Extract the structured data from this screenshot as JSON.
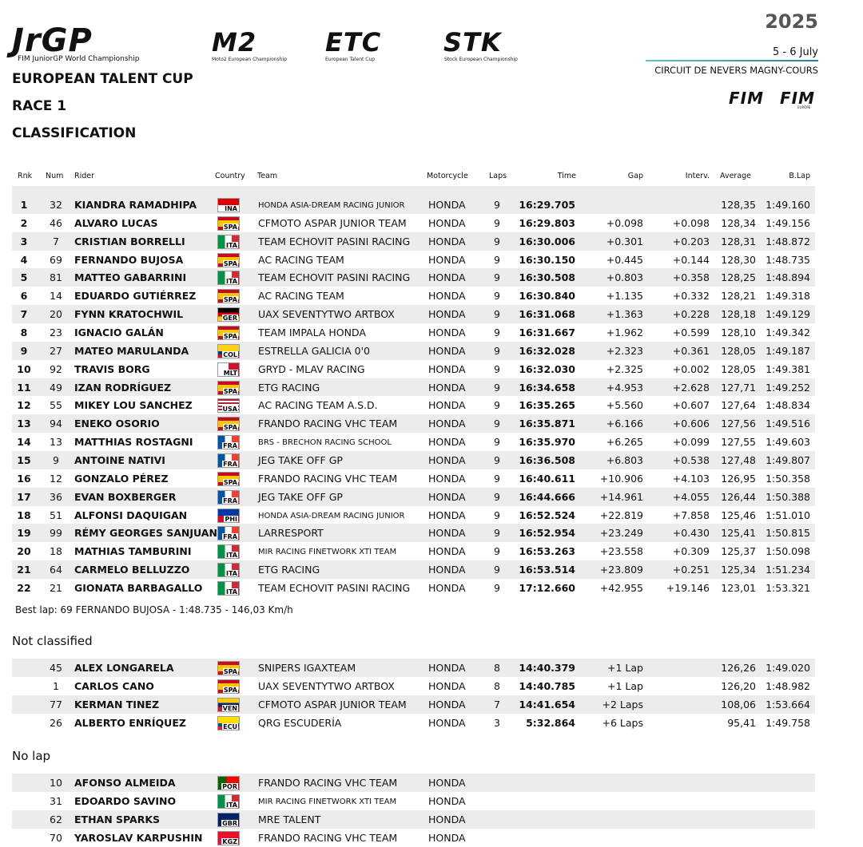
{
  "header": {
    "logos": {
      "jrgp": "JrGP",
      "jrgp_sub": "FIM JuniorGP World Championship",
      "m2": "M2",
      "m2_sub": "Moto2 European Championship",
      "etc": "ETC",
      "etc_sub": "European Talent Cup",
      "stk": "STK",
      "stk_sub": "Stock European Championship",
      "fim": "FIM",
      "fim_europe": "FIM",
      "fim_europe_sub": "EUROPE"
    },
    "year": "2025",
    "dates": "5 - 6 July",
    "circuit": "CIRCUIT DE NEVERS MAGNY-COURS",
    "event": "EUROPEAN TALENT CUP",
    "race": "RACE 1",
    "section": "CLASSIFICATION"
  },
  "table": {
    "columns": {
      "rank": "Rnk",
      "num": "Num",
      "rider": "Rider",
      "country": "Country",
      "team": "Team",
      "motorcycle": "Motorcycle",
      "laps": "Laps",
      "time": "Time",
      "gap": "Gap",
      "interval": "Interv.",
      "average": "Average",
      "best_lap": "B.Lap"
    },
    "classified": [
      {
        "rank": "1",
        "num": "32",
        "rider": "KIANDRA RAMADHIPA",
        "country": "INA",
        "team": "HONDA ASIA-DREAM RACING JUNIOR",
        "motorcycle": "HONDA",
        "laps": "9",
        "time": "16:29.705",
        "average": "128,35",
        "best_lap": "1:49.160"
      },
      {
        "rank": "2",
        "num": "46",
        "rider": "ALVARO LUCAS",
        "country": "SPA",
        "team": "CFMOTO ASPAR JUNIOR TEAM",
        "motorcycle": "HONDA",
        "laps": "9",
        "time": "16:29.803",
        "gap": "+0.098",
        "interval": "+0.098",
        "average": "128,34",
        "best_lap": "1:49.156"
      },
      {
        "rank": "3",
        "num": "7",
        "rider": "CRISTIAN BORRELLI",
        "country": "ITA",
        "team": "TEAM ECHOVIT PASINI RACING",
        "motorcycle": "HONDA",
        "laps": "9",
        "time": "16:30.006",
        "gap": "+0.301",
        "interval": "+0.203",
        "average": "128,31",
        "best_lap": "1:48.872"
      },
      {
        "rank": "4",
        "num": "69",
        "rider": "FERNANDO BUJOSA",
        "country": "SPA",
        "team": "AC RACING TEAM",
        "motorcycle": "HONDA",
        "laps": "9",
        "time": "16:30.150",
        "gap": "+0.445",
        "interval": "+0.144",
        "average": "128,30",
        "best_lap": "1:48.735"
      },
      {
        "rank": "5",
        "num": "81",
        "rider": "MATTEO GABARRINI",
        "country": "ITA",
        "team": "TEAM ECHOVIT PASINI RACING",
        "motorcycle": "HONDA",
        "laps": "9",
        "time": "16:30.508",
        "gap": "+0.803",
        "interval": "+0.358",
        "average": "128,25",
        "best_lap": "1:48.894"
      },
      {
        "rank": "6",
        "num": "14",
        "rider": "EDUARDO GUTIÉRREZ",
        "country": "SPA",
        "team": "AC RACING TEAM",
        "motorcycle": "HONDA",
        "laps": "9",
        "time": "16:30.840",
        "gap": "+1.135",
        "interval": "+0.332",
        "average": "128,21",
        "best_lap": "1:49.318"
      },
      {
        "rank": "7",
        "num": "20",
        "rider": "FYNN KRATOCHWIL",
        "country": "GER",
        "team": "UAX SEVENTYTWO ARTBOX",
        "motorcycle": "HONDA",
        "laps": "9",
        "time": "16:31.068",
        "gap": "+1.363",
        "interval": "+0.228",
        "average": "128,18",
        "best_lap": "1:49.129"
      },
      {
        "rank": "8",
        "num": "23",
        "rider": "IGNACIO GALÁN",
        "country": "SPA",
        "team": "TEAM IMPALA HONDA",
        "motorcycle": "HONDA",
        "laps": "9",
        "time": "16:31.667",
        "gap": "+1.962",
        "interval": "+0.599",
        "average": "128,10",
        "best_lap": "1:49.342"
      },
      {
        "rank": "9",
        "num": "27",
        "rider": "MATEO MARULANDA",
        "country": "COL",
        "team": "ESTRELLA GALICIA 0'0",
        "motorcycle": "HONDA",
        "laps": "9",
        "time": "16:32.028",
        "gap": "+2.323",
        "interval": "+0.361",
        "average": "128,05",
        "best_lap": "1:49.187"
      },
      {
        "rank": "10",
        "num": "92",
        "rider": "TRAVIS BORG",
        "country": "MLT",
        "team": "GRYD - MLAV RACING",
        "motorcycle": "HONDA",
        "laps": "9",
        "time": "16:32.030",
        "gap": "+2.325",
        "interval": "+0.002",
        "average": "128,05",
        "best_lap": "1:49.381"
      },
      {
        "rank": "11",
        "num": "49",
        "rider": "IZAN RODRÍGUEZ",
        "country": "SPA",
        "team": "ETG RACING",
        "motorcycle": "HONDA",
        "laps": "9",
        "time": "16:34.658",
        "gap": "+4.953",
        "interval": "+2.628",
        "average": "127,71",
        "best_lap": "1:49.252"
      },
      {
        "rank": "12",
        "num": "55",
        "rider": "MIKEY LOU SANCHEZ",
        "country": "USA",
        "team": "AC RACING TEAM A.S.D.",
        "motorcycle": "HONDA",
        "laps": "9",
        "time": "16:35.265",
        "gap": "+5.560",
        "interval": "+0.607",
        "average": "127,64",
        "best_lap": "1:48.834"
      },
      {
        "rank": "13",
        "num": "94",
        "rider": "ENEKO OSORIO",
        "country": "SPA",
        "team": "FRANDO RACING VHC TEAM",
        "motorcycle": "HONDA",
        "laps": "9",
        "time": "16:35.871",
        "gap": "+6.166",
        "interval": "+0.606",
        "average": "127,56",
        "best_lap": "1:49.516"
      },
      {
        "rank": "14",
        "num": "13",
        "rider": "MATTHIAS ROSTAGNI",
        "country": "FRA",
        "team": "BRS - BRECHON RACING SCHOOL",
        "motorcycle": "HONDA",
        "laps": "9",
        "time": "16:35.970",
        "gap": "+6.265",
        "interval": "+0.099",
        "average": "127,55",
        "best_lap": "1:49.603"
      },
      {
        "rank": "15",
        "num": "9",
        "rider": "ANTOINE NATIVI",
        "country": "FRA",
        "team": "JEG TAKE OFF GP",
        "motorcycle": "HONDA",
        "laps": "9",
        "time": "16:36.508",
        "gap": "+6.803",
        "interval": "+0.538",
        "average": "127,48",
        "best_lap": "1:49.807"
      },
      {
        "rank": "16",
        "num": "12",
        "rider": "GONZALO PÉREZ",
        "country": "SPA",
        "team": "FRANDO RACING VHC TEAM",
        "motorcycle": "HONDA",
        "laps": "9",
        "time": "16:40.611",
        "gap": "+10.906",
        "interval": "+4.103",
        "average": "126,95",
        "best_lap": "1:50.358"
      },
      {
        "rank": "17",
        "num": "36",
        "rider": "EVAN BOXBERGER",
        "country": "FRA",
        "team": "JEG TAKE OFF GP",
        "motorcycle": "HONDA",
        "laps": "9",
        "time": "16:44.666",
        "gap": "+14.961",
        "interval": "+4.055",
        "average": "126,44",
        "best_lap": "1:50.388"
      },
      {
        "rank": "18",
        "num": "51",
        "rider": "ALFONSI DAQUIGAN",
        "country": "PHI",
        "team": "HONDA ASIA-DREAM RACING JUNIOR",
        "motorcycle": "HONDA",
        "laps": "9",
        "time": "16:52.524",
        "gap": "+22.819",
        "interval": "+7.858",
        "average": "125,46",
        "best_lap": "1:51.010"
      },
      {
        "rank": "19",
        "num": "99",
        "rider": "RÉMY GEORGES SANJUAN",
        "country": "FRA",
        "team": "LARRESPORT",
        "motorcycle": "HONDA",
        "laps": "9",
        "time": "16:52.954",
        "gap": "+23.249",
        "interval": "+0.430",
        "average": "125,41",
        "best_lap": "1:50.815"
      },
      {
        "rank": "20",
        "num": "18",
        "rider": "MATHIAS TAMBURINI",
        "country": "ITA",
        "team": "MIR RACING FINETWORK XTI TEAM",
        "motorcycle": "HONDA",
        "laps": "9",
        "time": "16:53.263",
        "gap": "+23.558",
        "interval": "+0.309",
        "average": "125,37",
        "best_lap": "1:50.098"
      },
      {
        "rank": "21",
        "num": "64",
        "rider": "CARMELO BELLUZZO",
        "country": "ITA",
        "team": "ETG RACING",
        "motorcycle": "HONDA",
        "laps": "9",
        "time": "16:53.514",
        "gap": "+23.809",
        "interval": "+0.251",
        "average": "125,34",
        "best_lap": "1:51.234"
      },
      {
        "rank": "22",
        "num": "21",
        "rider": "GIONATA BARBAGALLO",
        "country": "ITA",
        "team": "TEAM ECHOVIT PASINI RACING",
        "motorcycle": "HONDA",
        "laps": "9",
        "time": "17:12.660",
        "gap": "+42.955",
        "interval": "+19.146",
        "average": "123,01",
        "best_lap": "1:53.321"
      }
    ],
    "best_lap_note": "Best lap: 69  FERNANDO BUJOSA  - 1:48.735 - 146,03 Km/h",
    "not_classified_title": "Not classified",
    "not_classified": [
      {
        "num": "45",
        "rider": "ALEX LONGARELA",
        "country": "SPA",
        "team": "SNIPERS IGAXTEAM",
        "motorcycle": "HONDA",
        "laps": "8",
        "time": "14:40.379",
        "gap": "+1 Lap",
        "average": "126,26",
        "best_lap": "1:49.020"
      },
      {
        "num": "1",
        "rider": "CARLOS CANO",
        "country": "SPA",
        "team": "UAX SEVENTYTWO ARTBOX",
        "motorcycle": "HONDA",
        "laps": "8",
        "time": "14:40.785",
        "gap": "+1 Lap",
        "average": "126,20",
        "best_lap": "1:48.982"
      },
      {
        "num": "77",
        "rider": "KERMAN TINEZ",
        "country": "VEN",
        "team": "CFMOTO ASPAR JUNIOR TEAM",
        "motorcycle": "HONDA",
        "laps": "7",
        "time": "14:41.654",
        "gap": "+2 Laps",
        "average": "108,06",
        "best_lap": "1:53.664"
      },
      {
        "num": "26",
        "rider": "ALBERTO ENRÍQUEZ",
        "country": "ECU",
        "team": "QRG ESCUDERÍA",
        "motorcycle": "HONDA",
        "laps": "3",
        "time": "5:32.864",
        "gap": "+6 Laps",
        "average": "95,41",
        "best_lap": "1:49.758"
      }
    ],
    "no_lap_title": "No lap",
    "no_lap": [
      {
        "num": "10",
        "rider": "AFONSO ALMEIDA",
        "country": "POR",
        "team": "FRANDO RACING VHC TEAM",
        "motorcycle": "HONDA"
      },
      {
        "num": "31",
        "rider": "EDOARDO SAVINO",
        "country": "ITA",
        "team": "MIR RACING FINETWORK XTI TEAM",
        "motorcycle": "HONDA"
      },
      {
        "num": "62",
        "rider": "ETHAN SPARKS",
        "country": "GBR",
        "team": "MRE TALENT",
        "motorcycle": "HONDA"
      },
      {
        "num": "70",
        "rider": "YAROSLAV KARPUSHIN",
        "country": "KGZ",
        "team": "FRANDO RACING VHC TEAM",
        "motorcycle": "HONDA"
      }
    ]
  }
}
